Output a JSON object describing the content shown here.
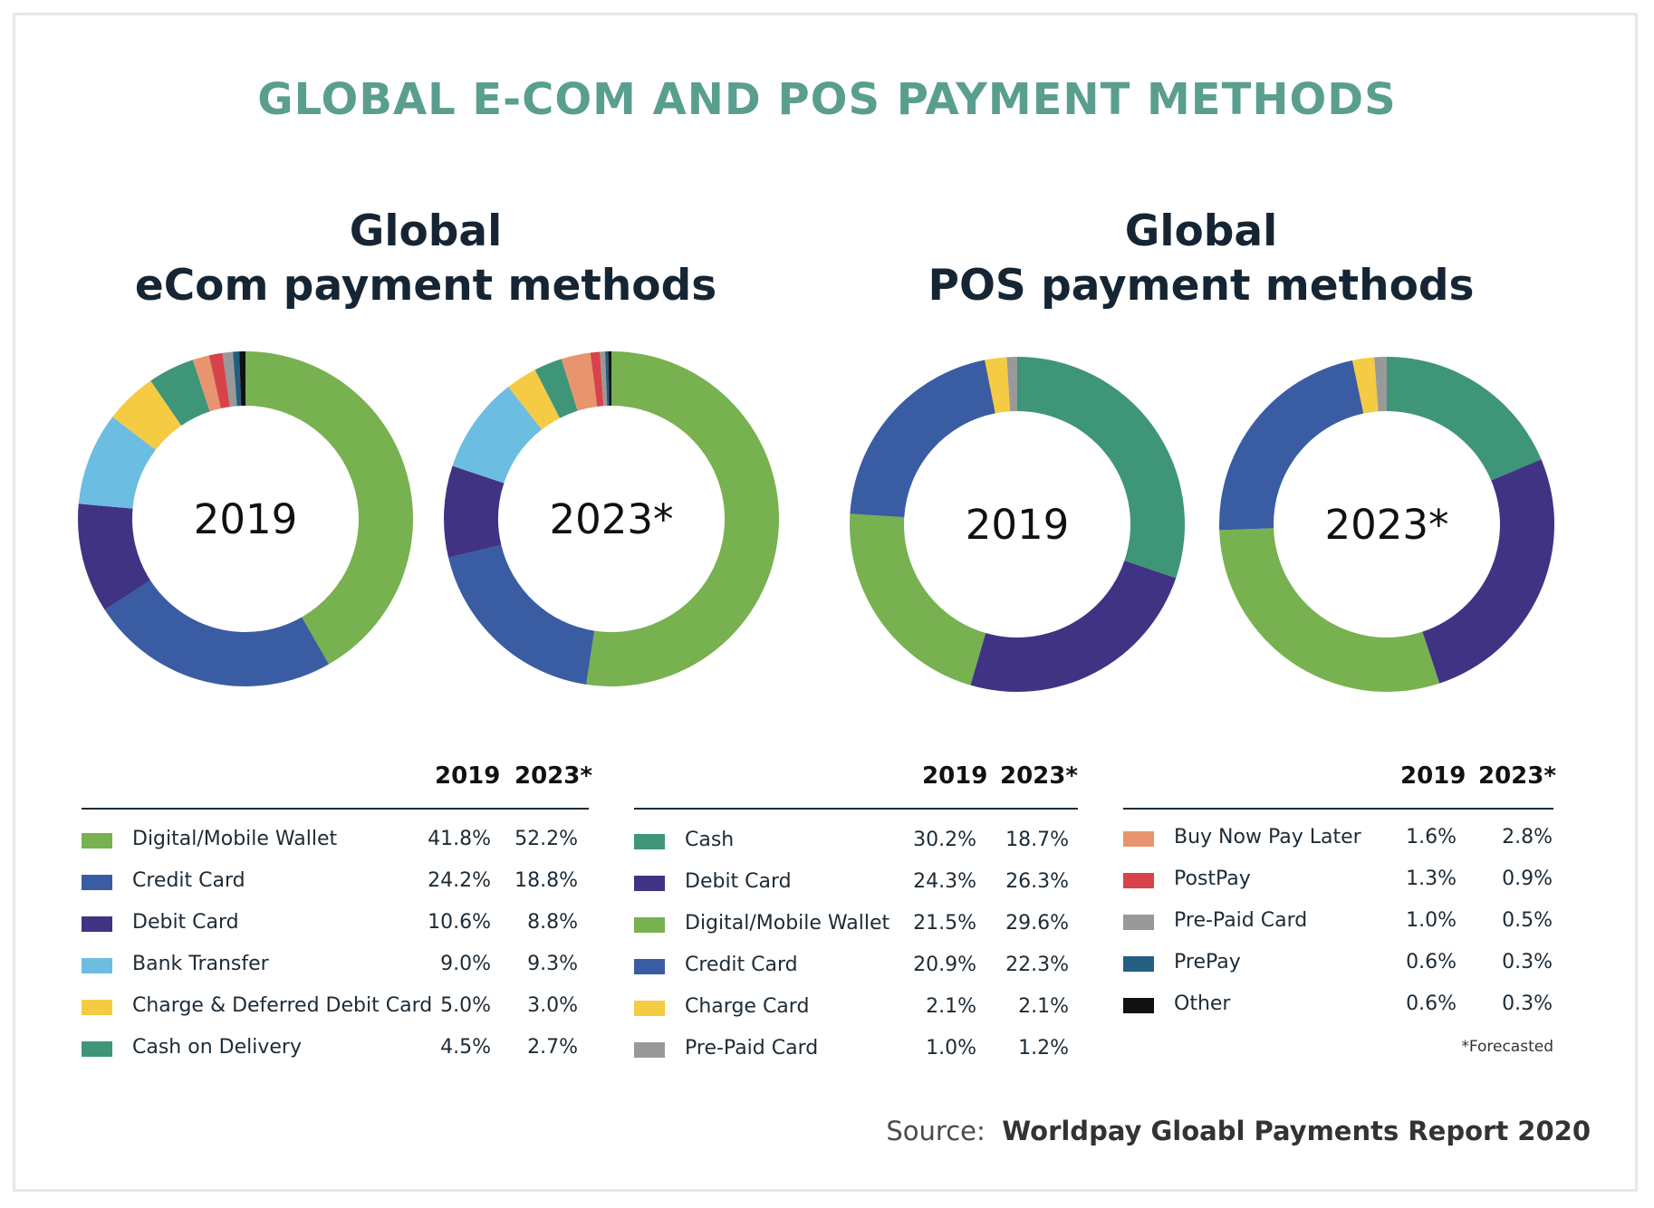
{
  "title": "GLOBAL E-COM AND POS PAYMENT METHODS",
  "ecom": {
    "title_line1": "Global",
    "title_line2": "eCom payment methods",
    "year_2019": "2019",
    "year_2023": "2023*",
    "rows": [
      {
        "label": "Digital/Mobile Wallet",
        "v2019": "41.8%",
        "v2023": "52.2%",
        "color": "#77b150"
      },
      {
        "label": "Credit Card",
        "v2019": "24.2%",
        "v2023": "18.8%",
        "color": "#3a5ca3"
      },
      {
        "label": "Debit Card",
        "v2019": "10.6%",
        "v2023": "8.8%",
        "color": "#403384"
      },
      {
        "label": "Bank Transfer",
        "v2019": "9.0%",
        "v2023": "9.3%",
        "color": "#6cbde2"
      },
      {
        "label": "Charge & Deferred Debit Card",
        "v2019": "5.0%",
        "v2023": "3.0%",
        "color": "#f5cb44"
      },
      {
        "label": "Cash on Delivery",
        "v2019": "4.5%",
        "v2023": "2.7%",
        "color": "#3f9577"
      }
    ]
  },
  "pos": {
    "title_line1": "Global",
    "title_line2": "POS payment methods",
    "year_2019": "2019",
    "year_2023": "2023*",
    "rows": [
      {
        "label": "Cash",
        "v2019": "30.2%",
        "v2023": "18.7%",
        "color": "#3f9577"
      },
      {
        "label": "Debit Card",
        "v2019": "24.3%",
        "v2023": "26.3%",
        "color": "#403384"
      },
      {
        "label": "Digital/Mobile Wallet",
        "v2019": "21.5%",
        "v2023": "29.6%",
        "color": "#77b150"
      },
      {
        "label": "Credit Card",
        "v2019": "20.9%",
        "v2023": "22.3%",
        "color": "#3a5ca3"
      },
      {
        "label": "Charge Card",
        "v2019": "2.1%",
        "v2023": "2.1%",
        "color": "#f5cb44"
      },
      {
        "label": "Pre-Paid Card",
        "v2019": "1.0%",
        "v2023": "1.2%",
        "color": "#999999"
      }
    ]
  },
  "other": {
    "year_2019": "2019",
    "year_2023": "2023*",
    "rows": [
      {
        "label": "Buy Now Pay Later",
        "v2019": "1.6%",
        "v2023": "2.8%",
        "color": "#e8956f"
      },
      {
        "label": "PostPay",
        "v2019": "1.3%",
        "v2023": "0.9%",
        "color": "#d8424b"
      },
      {
        "label": "Pre-Paid Card",
        "v2019": "1.0%",
        "v2023": "0.5%",
        "color": "#999999"
      },
      {
        "label": "PrePay",
        "v2019": "0.6%",
        "v2023": "0.3%",
        "color": "#245e80"
      },
      {
        "label": "Other",
        "v2019": "0.6%",
        "v2023": "0.3%",
        "color": "#111111"
      }
    ],
    "forecast_note": "*Forecasted"
  },
  "source_prefix": "Source:",
  "source_name": "Worldpay Gloabl Payments Report 2020",
  "chart_data": [
    {
      "type": "pie",
      "title": "Global eCom payment methods",
      "center_label": "2019",
      "categories": [
        "Digital/Mobile Wallet",
        "Credit Card",
        "Debit Card",
        "Bank Transfer",
        "Charge & Deferred Debit Card",
        "Cash on Delivery",
        "Buy Now Pay Later",
        "PostPay",
        "Pre-Paid Card",
        "PrePay",
        "Other"
      ],
      "values": [
        41.8,
        24.2,
        10.6,
        9.0,
        5.0,
        4.5,
        1.6,
        1.3,
        1.0,
        0.6,
        0.6
      ],
      "colors": [
        "#77b150",
        "#3a5ca3",
        "#403384",
        "#6cbde2",
        "#f5cb44",
        "#3f9577",
        "#e8956f",
        "#d8424b",
        "#999999",
        "#245e80",
        "#111111"
      ]
    },
    {
      "type": "pie",
      "title": "Global eCom payment methods",
      "center_label": "2023*",
      "categories": [
        "Digital/Mobile Wallet",
        "Credit Card",
        "Debit Card",
        "Bank Transfer",
        "Charge & Deferred Debit Card",
        "Cash on Delivery",
        "Buy Now Pay Later",
        "PostPay",
        "Pre-Paid Card",
        "PrePay",
        "Other"
      ],
      "values": [
        52.2,
        18.8,
        8.8,
        9.3,
        3.0,
        2.7,
        2.8,
        0.9,
        0.5,
        0.3,
        0.3
      ],
      "colors": [
        "#77b150",
        "#3a5ca3",
        "#403384",
        "#6cbde2",
        "#f5cb44",
        "#3f9577",
        "#e8956f",
        "#d8424b",
        "#999999",
        "#245e80",
        "#111111"
      ]
    },
    {
      "type": "pie",
      "title": "Global POS payment methods",
      "center_label": "2019",
      "categories": [
        "Cash",
        "Debit Card",
        "Digital/Mobile Wallet",
        "Credit Card",
        "Charge Card",
        "Pre-Paid Card"
      ],
      "values": [
        30.2,
        24.3,
        21.5,
        20.9,
        2.1,
        1.0
      ],
      "colors": [
        "#3f9577",
        "#403384",
        "#77b150",
        "#3a5ca3",
        "#f5cb44",
        "#999999"
      ]
    },
    {
      "type": "pie",
      "title": "Global POS payment methods",
      "center_label": "2023*",
      "categories": [
        "Cash",
        "Debit Card",
        "Digital/Mobile Wallet",
        "Credit Card",
        "Charge Card",
        "Pre-Paid Card"
      ],
      "values": [
        18.7,
        26.3,
        29.6,
        22.3,
        2.1,
        1.2
      ],
      "colors": [
        "#3f9577",
        "#403384",
        "#77b150",
        "#3a5ca3",
        "#f5cb44",
        "#999999"
      ]
    }
  ]
}
